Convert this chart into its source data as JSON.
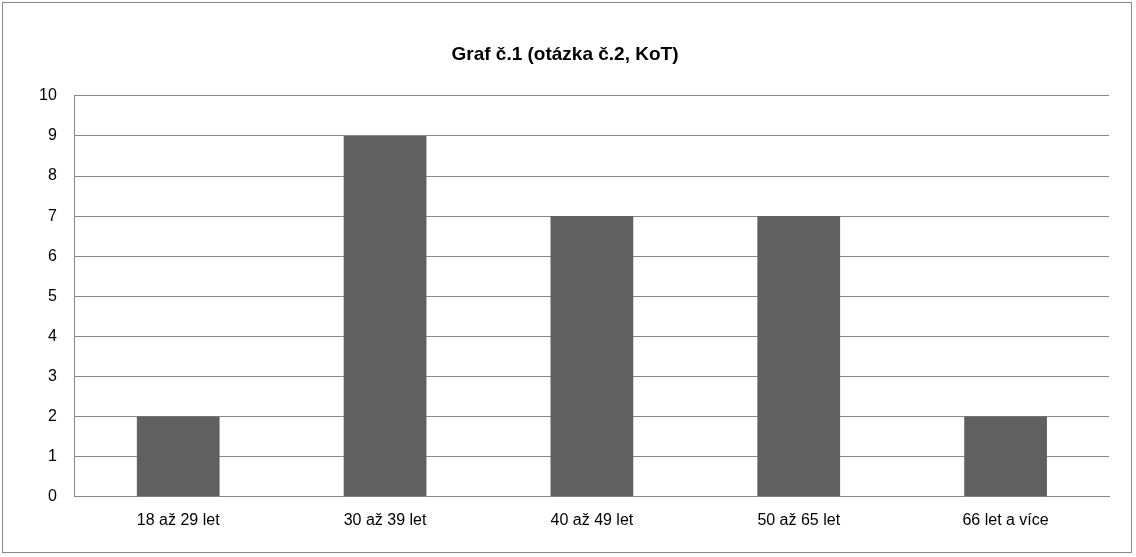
{
  "chart_data": {
    "type": "bar",
    "title": "Graf č.1 (otázka č.2, KoT)",
    "categories": [
      "18 až 29 let",
      "30 až 39 let",
      "40 až 49 let",
      "50 až 65 let",
      "66 let a více"
    ],
    "values": [
      2,
      9,
      7,
      7,
      2
    ],
    "color": "#606060",
    "ylim": [
      0,
      10
    ],
    "yticks": [
      0,
      1,
      2,
      3,
      4,
      5,
      6,
      7,
      8,
      9,
      10
    ],
    "grid": "y",
    "legend": false
  }
}
